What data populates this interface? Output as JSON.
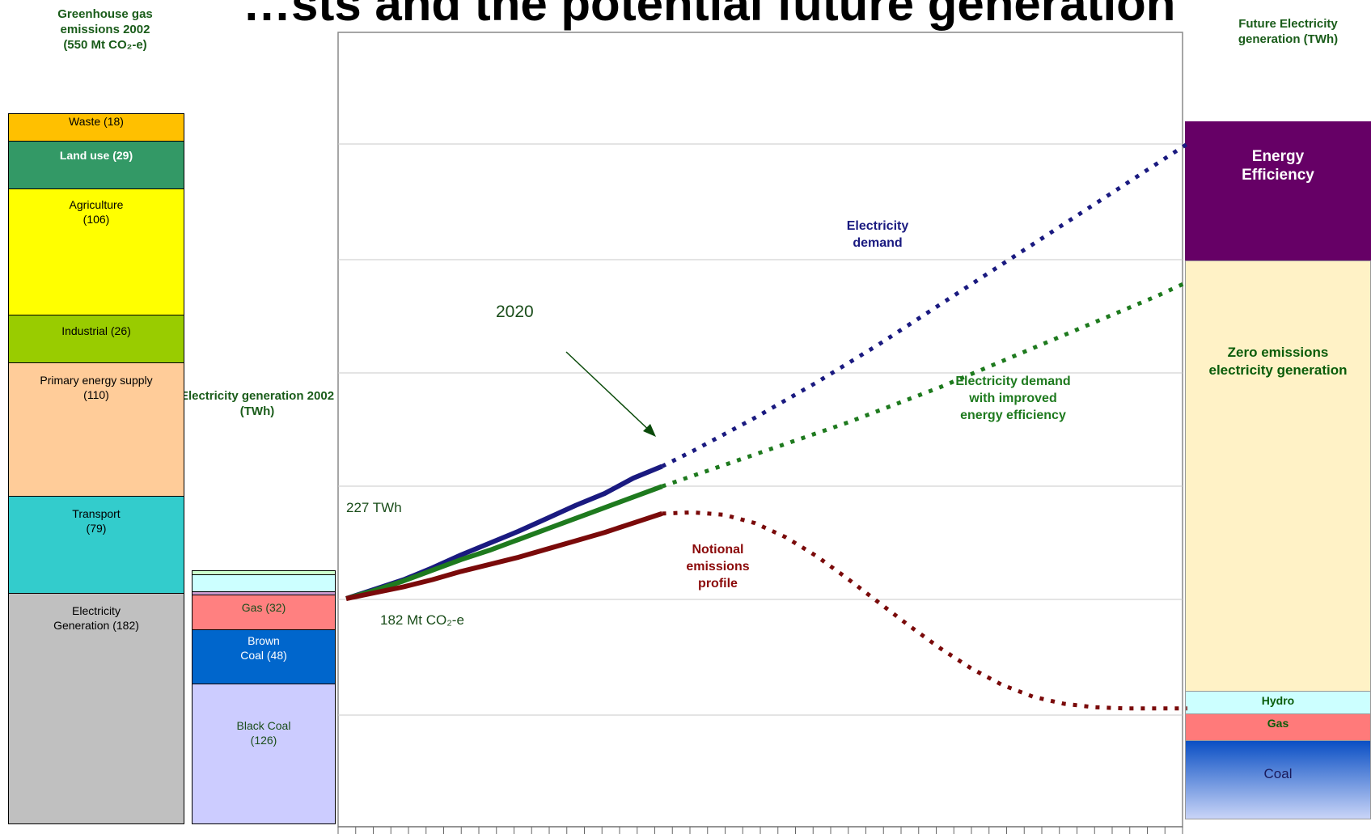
{
  "title": "…sts and the potential future generation",
  "left_header": {
    "line1": "Greenhouse gas",
    "line2": "emissions 2002",
    "line3": "(550 Mt CO₂-e)"
  },
  "mid_header": {
    "line1": "Electricity generation 2002",
    "line2": "(TWh)"
  },
  "right_header": {
    "line1": "Future Electricity",
    "line2": "generation (TWh)"
  },
  "emissions_2002": [
    {
      "label": "Waste (18)",
      "color": "#ffc000",
      "bold": false
    },
    {
      "label": "Land use (29)",
      "color": "#339966",
      "bold": true,
      "text_color": "#ffffff"
    },
    {
      "label": "Agriculture",
      "label2": "(106)",
      "color": "#ffff00",
      "bold": false
    },
    {
      "label": "Industrial (26)",
      "color": "#99cc00",
      "bold": false
    },
    {
      "label": "Primary energy supply",
      "label2": "(110)",
      "color": "#ffcc99",
      "bold": false
    },
    {
      "label": "Transport",
      "label2": "(79)",
      "color": "#33cccc",
      "bold": false
    },
    {
      "label": "Electricity",
      "label2": "Generation (182)",
      "color": "#c0c0c0",
      "bold": false
    }
  ],
  "generation_2002": [
    {
      "label": "",
      "color": "#ccffcc"
    },
    {
      "label": "",
      "color": "#ccffff"
    },
    {
      "label": "",
      "color": "#cc99cc"
    },
    {
      "label": "Gas (32)",
      "color": "#ff8080",
      "text_color": "#1a4d1a"
    },
    {
      "label": "Brown",
      "label2": "Coal (48)",
      "color": "#0066cc",
      "text_color": "#ffffff"
    },
    {
      "label": "Black Coal",
      "label2": "(126)",
      "color": "#ccccff",
      "text_color": "#1a4d1a"
    }
  ],
  "future_generation": [
    {
      "label": "Energy",
      "label2": "Efficiency",
      "color": "#660066",
      "text_color": "#ffffff"
    },
    {
      "label": "Zero emissions",
      "label2": "electricity generation",
      "color": "#fff2c6",
      "text_color": "#0a5c0a"
    },
    {
      "label": "Hydro",
      "color": "#ccffff",
      "text_color": "#0a5c0a"
    },
    {
      "label": "Gas",
      "color": "#ff7a7a",
      "text_color": "#0a5c0a"
    },
    {
      "label": "Coal",
      "color": "#2a62cf",
      "text_color": "#1a1a5a"
    }
  ],
  "chart_data": {
    "type": "line",
    "series": [
      {
        "name": "Electricity demand",
        "color": "#1a1a80",
        "actual": [
          0,
          0.8,
          1.6,
          2.6,
          3.7,
          4.7,
          5.7,
          6.8,
          7.9,
          8.9,
          10.2,
          11.2
        ],
        "projected": [
          11.2,
          12.5,
          13.9,
          15.3,
          16.8,
          18.3,
          19.9,
          21.5,
          23.2,
          24.9,
          26.6,
          28.3,
          30.0,
          31.7,
          33.4,
          35.1,
          36.8,
          38.5
        ]
      },
      {
        "name": "Electricity demand with improved energy efficiency",
        "color": "#1e7a1e",
        "actual": [
          0,
          0.7,
          1.5,
          2.4,
          3.3,
          4.1,
          5.0,
          5.9,
          6.8,
          7.7,
          8.6,
          9.5
        ],
        "projected": [
          9.5,
          10.4,
          11.3,
          12.2,
          13.1,
          14.0,
          14.9,
          15.9,
          16.9,
          17.9,
          19.0,
          20.1,
          21.2,
          22.3,
          23.4,
          24.5,
          25.6,
          26.8
        ]
      },
      {
        "name": "Notional emissions profile",
        "color": "#7a0a0a",
        "actual": [
          0,
          0.5,
          1.0,
          1.6,
          2.3,
          2.9,
          3.5,
          4.2,
          4.9,
          5.6,
          6.4,
          7.2
        ],
        "projected": [
          7.2,
          7.3,
          7.1,
          6.4,
          5.2,
          3.6,
          1.7,
          -0.3,
          -2.3,
          -4.2,
          -5.9,
          -7.3,
          -8.3,
          -8.9,
          -9.2,
          -9.3,
          -9.3,
          -9.3
        ]
      }
    ],
    "gridlines": true,
    "legend": "none"
  },
  "annotations": {
    "year_marker": "2020",
    "start_twh": "227 TWh",
    "start_emissions": "182 Mt CO₂-e",
    "label_demand_1": "Electricity",
    "label_demand_2": "demand",
    "label_eff_1": "Electricity demand",
    "label_eff_2": "with improved",
    "label_eff_3": "energy efficiency",
    "label_em_1": "Notional",
    "label_em_2": "emissions",
    "label_em_3": "profile"
  }
}
